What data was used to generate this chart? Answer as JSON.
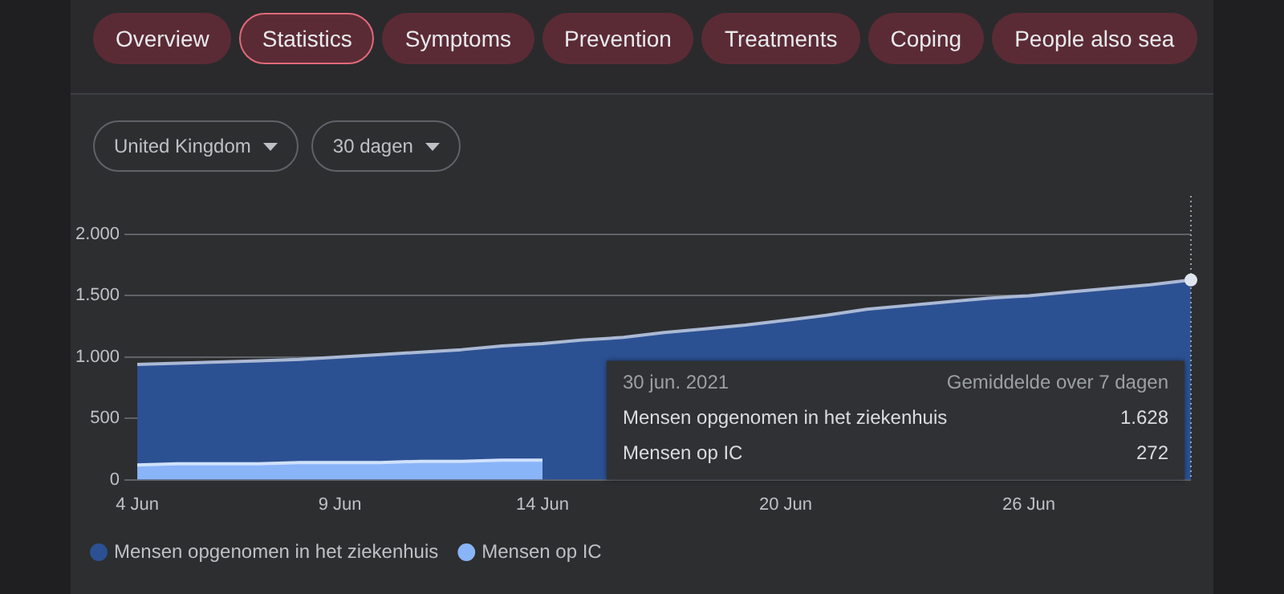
{
  "chart_data": {
    "type": "area",
    "categories": [
      "4 Jun",
      null,
      null,
      null,
      null,
      "9 Jun",
      null,
      null,
      null,
      null,
      "14 Jun",
      null,
      null,
      null,
      null,
      null,
      "20 Jun",
      null,
      null,
      null,
      null,
      null,
      "26 Jun",
      null,
      null,
      null,
      null
    ],
    "series": [
      {
        "name": "Mensen opgenomen in het ziekenhuis",
        "color": "#2c5193",
        "values": [
          940,
          950,
          960,
          970,
          980,
          1000,
          1020,
          1040,
          1060,
          1090,
          1110,
          1140,
          1160,
          1200,
          1230,
          1260,
          1300,
          1340,
          1390,
          1420,
          1450,
          1480,
          1500,
          1530,
          1560,
          1590,
          1628
        ]
      },
      {
        "name": "Mensen op IC",
        "color": "#8ab4f8",
        "values": [
          120,
          130,
          130,
          130,
          140,
          140,
          140,
          150,
          150,
          160,
          160,
          null,
          null,
          null,
          null,
          null,
          null,
          null,
          null,
          null,
          null,
          null,
          null,
          null,
          null,
          null,
          null
        ]
      }
    ],
    "ylim": [
      0,
      2000
    ],
    "yticks": [
      0,
      500,
      {
        "value": 1000,
        "label": "1.000"
      },
      {
        "value": 1500,
        "label": "1.500"
      },
      {
        "value": 2000,
        "label": "2.000"
      }
    ],
    "grid": "y",
    "legend": "bottom left",
    "annotations": [
      "Overview",
      "Statistics",
      "Symptoms",
      "Prevention",
      "Treatments",
      "Coping",
      "People also sea",
      "United Kingdom",
      "30 dagen",
      "30 jun. 2021",
      "Gemiddelde over 7 dagen",
      "Mensen opgenomen in het ziekenhuis",
      "1.628",
      "Mensen op IC",
      "272"
    ]
  }
}
